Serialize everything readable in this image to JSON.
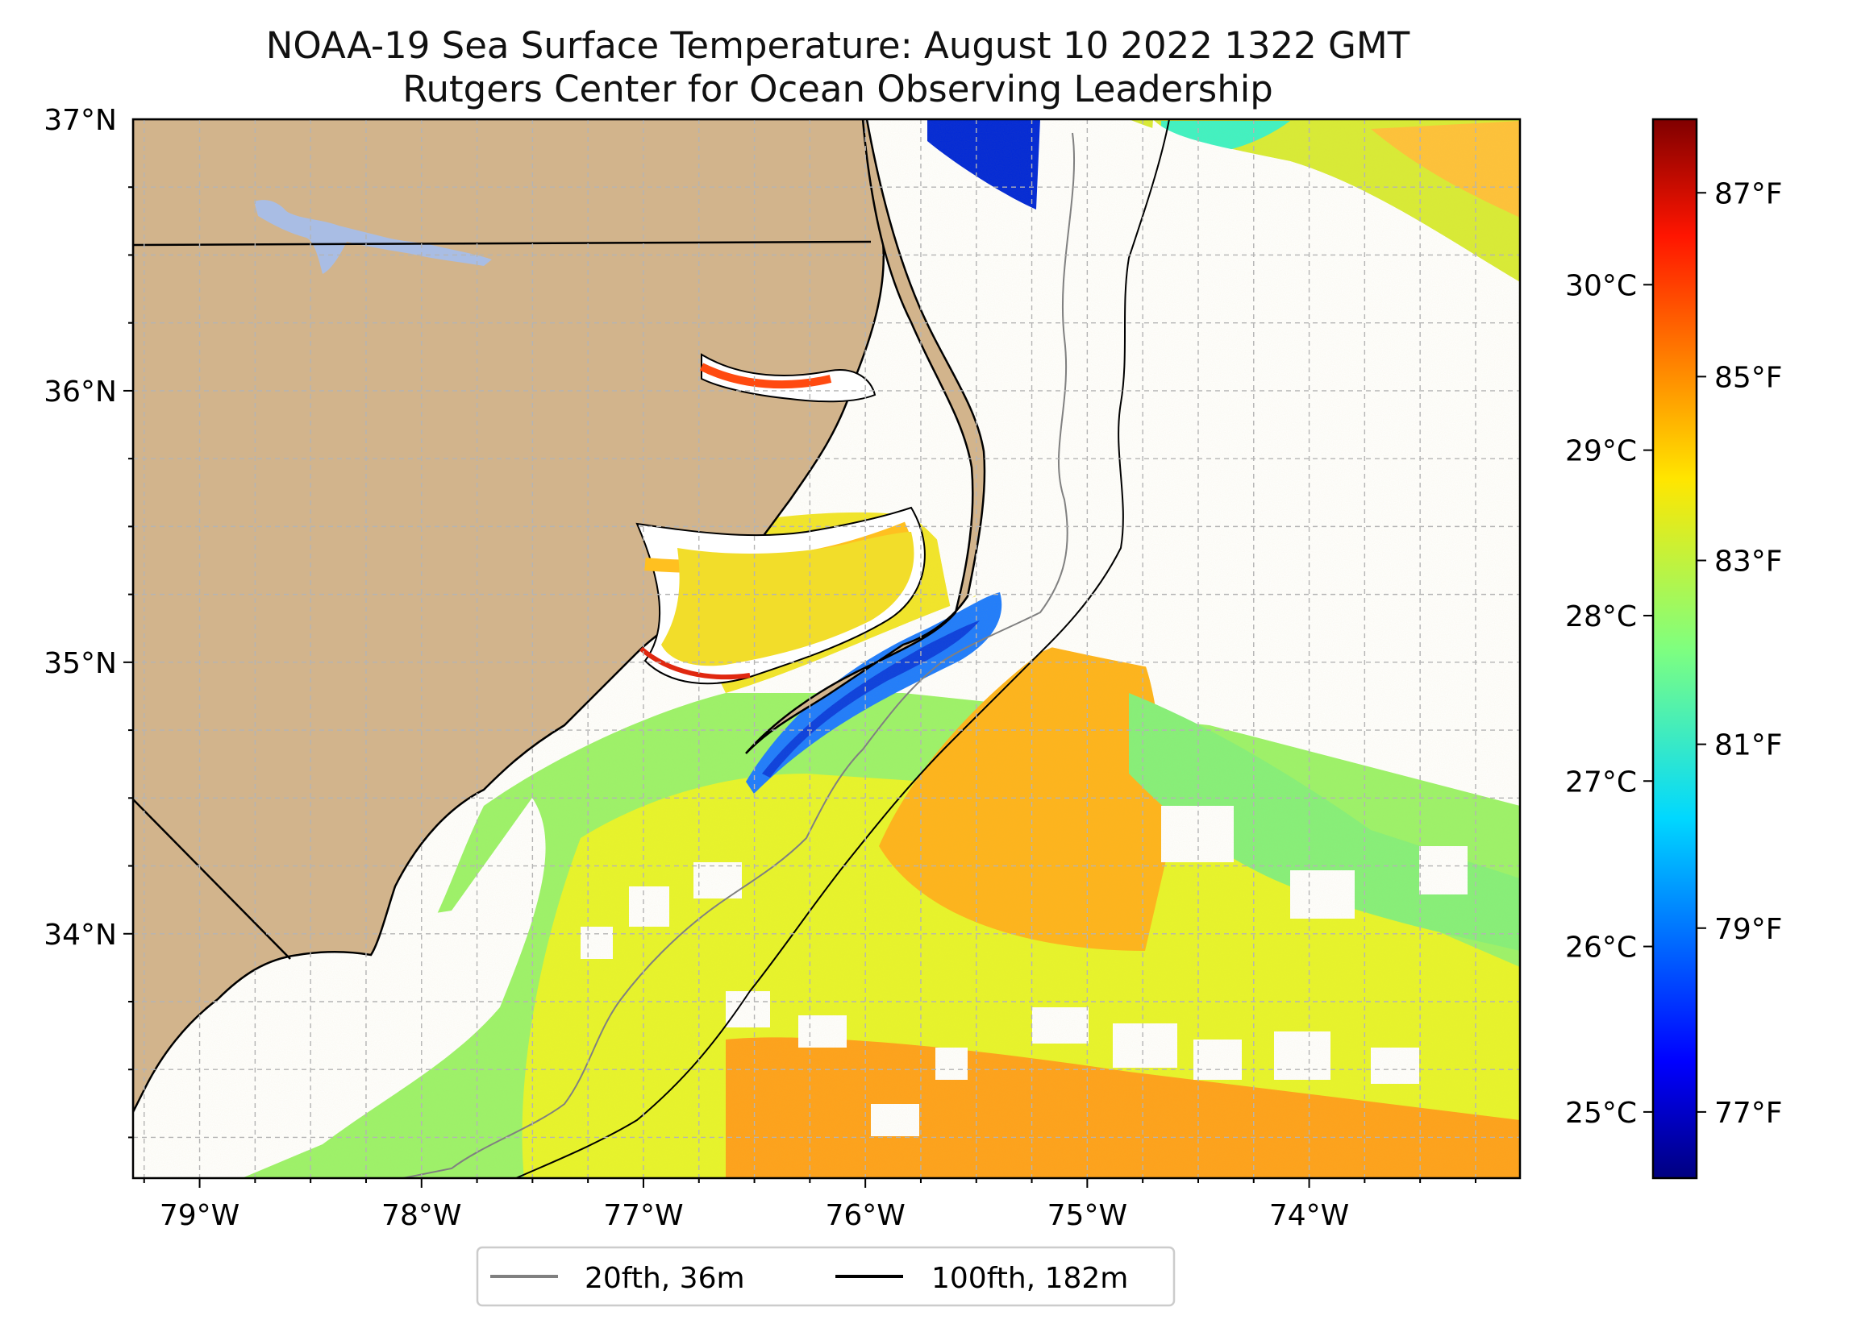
{
  "title": "NOAA-19 Sea Surface Temperature: August 10 2022 1322 GMT",
  "subtitle": "Rutgers Center for Ocean Observing Leadership",
  "map": {
    "lon_range": [
      -79.3,
      -73.05
    ],
    "lat_range": [
      33.1,
      37.0
    ],
    "lon_tick_labels": [
      {
        "lon": -79,
        "label": "79°W"
      },
      {
        "lon": -78,
        "label": "78°W"
      },
      {
        "lon": -77,
        "label": "77°W"
      },
      {
        "lon": -76,
        "label": "76°W"
      },
      {
        "lon": -75,
        "label": "75°W"
      },
      {
        "lon": -74,
        "label": "74°W"
      }
    ],
    "lat_tick_labels": [
      {
        "lat": 37,
        "label": "37°N"
      },
      {
        "lat": 36,
        "label": "36°N"
      },
      {
        "lat": 35,
        "label": "35°N"
      },
      {
        "lat": 34,
        "label": "34°N"
      }
    ],
    "gridlines": true,
    "colors": {
      "land": "#d2b48c",
      "lake": "#a9bde4",
      "ocean_no_data": "#ffffff",
      "grid": "#b4b4b4"
    }
  },
  "colorbar": {
    "colormap": "jet",
    "range_c": [
      24.6,
      31.0
    ],
    "celsius_ticks": [
      {
        "value": 25,
        "label": "25°C"
      },
      {
        "value": 26,
        "label": "26°C"
      },
      {
        "value": 27,
        "label": "27°C"
      },
      {
        "value": 28,
        "label": "28°C"
      },
      {
        "value": 29,
        "label": "29°C"
      },
      {
        "value": 30,
        "label": "30°C"
      }
    ],
    "fahrenheit_ticks": [
      {
        "value": 77,
        "label": "77°F"
      },
      {
        "value": 79,
        "label": "79°F"
      },
      {
        "value": 81,
        "label": "81°F"
      },
      {
        "value": 83,
        "label": "83°F"
      },
      {
        "value": 85,
        "label": "85°F"
      },
      {
        "value": 87,
        "label": "87°F"
      }
    ]
  },
  "legend": {
    "placement": "bottom-center",
    "entries": [
      {
        "label": "20fth, 36m",
        "color": "#808080"
      },
      {
        "label": "100fth, 182m",
        "color": "#000000"
      }
    ]
  }
}
